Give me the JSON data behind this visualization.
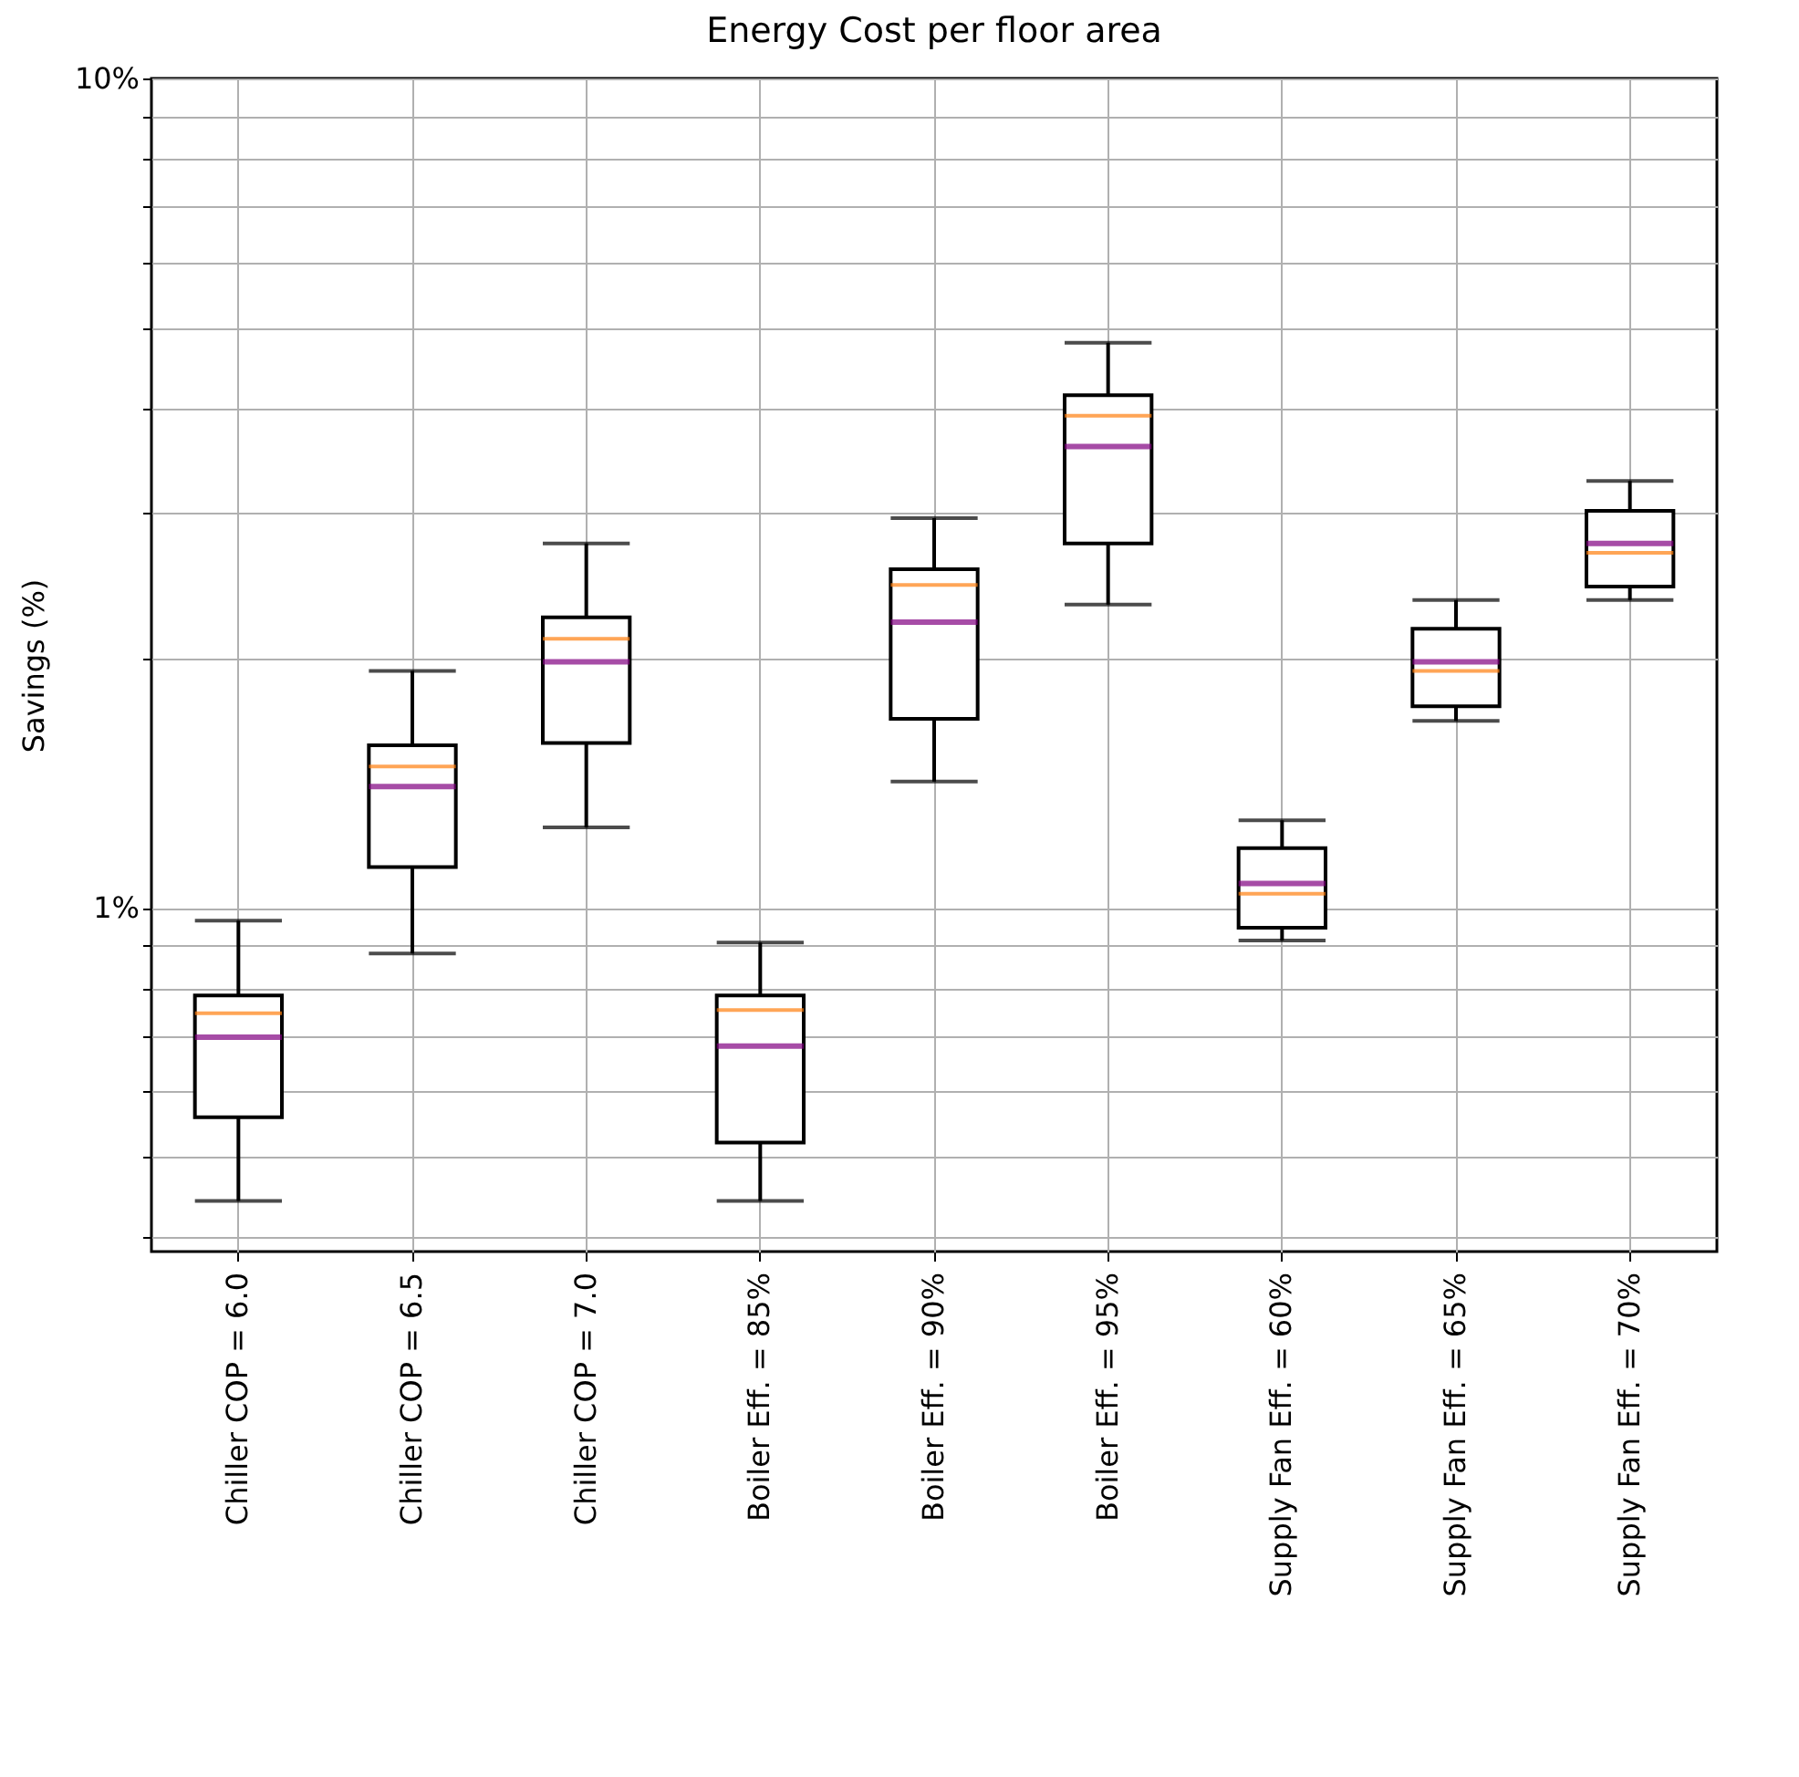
{
  "chart_data": {
    "type": "box",
    "title": "Energy Cost per floor area",
    "ylabel": "Savings (%)",
    "categories": [
      "Chiller COP = 6.0",
      "Chiller COP = 6.5",
      "Chiller COP = 7.0",
      "Boiler Eff. = 85%",
      "Boiler Eff. = 90%",
      "Boiler Eff. = 95%",
      "Supply Fan Eff. = 60%",
      "Supply Fan Eff. = 65%",
      "Supply Fan Eff. = 70%"
    ],
    "boxes": [
      {
        "low": 0.443,
        "q1": 0.559,
        "median": 0.746,
        "q3": 0.784,
        "high": 0.965,
        "mean": 0.698
      },
      {
        "low": 0.881,
        "q1": 1.12,
        "median": 1.48,
        "q3": 1.57,
        "high": 1.93,
        "mean": 1.4
      },
      {
        "low": 1.25,
        "q1": 1.58,
        "median": 2.11,
        "q3": 2.24,
        "high": 2.75,
        "mean": 1.98
      },
      {
        "low": 0.443,
        "q1": 0.521,
        "median": 0.753,
        "q3": 0.784,
        "high": 0.908,
        "mean": 0.681
      },
      {
        "low": 1.42,
        "q1": 1.69,
        "median": 2.45,
        "q3": 2.56,
        "high": 2.95,
        "mean": 2.21
      },
      {
        "low": 2.32,
        "q1": 2.75,
        "median": 3.92,
        "q3": 4.15,
        "high": 4.8,
        "mean": 3.6
      },
      {
        "low": 0.913,
        "q1": 0.946,
        "median": 1.04,
        "q3": 1.18,
        "high": 1.275,
        "mean": 1.07
      },
      {
        "low": 1.68,
        "q1": 1.75,
        "median": 1.93,
        "q3": 2.17,
        "high": 2.35,
        "mean": 1.98
      },
      {
        "low": 2.35,
        "q1": 2.44,
        "median": 2.68,
        "q3": 3.01,
        "high": 3.27,
        "mean": 2.75
      }
    ],
    "log": "y",
    "ylim": [
      0.385,
      10
    ],
    "yticks": [
      {
        "value": 0.4,
        "label": null
      },
      {
        "value": 0.5,
        "label": null
      },
      {
        "value": 0.6,
        "label": null
      },
      {
        "value": 0.7,
        "label": null
      },
      {
        "value": 0.8,
        "label": null
      },
      {
        "value": 0.9,
        "label": null
      },
      {
        "value": 1,
        "label": "1%"
      },
      {
        "value": 2,
        "label": null
      },
      {
        "value": 3,
        "label": null
      },
      {
        "value": 4,
        "label": null
      },
      {
        "value": 5,
        "label": null
      },
      {
        "value": 6,
        "label": null
      },
      {
        "value": 7,
        "label": null
      },
      {
        "value": 8,
        "label": null
      },
      {
        "value": 9,
        "label": null
      },
      {
        "value": 10,
        "label": "10%"
      }
    ],
    "grid": true
  }
}
